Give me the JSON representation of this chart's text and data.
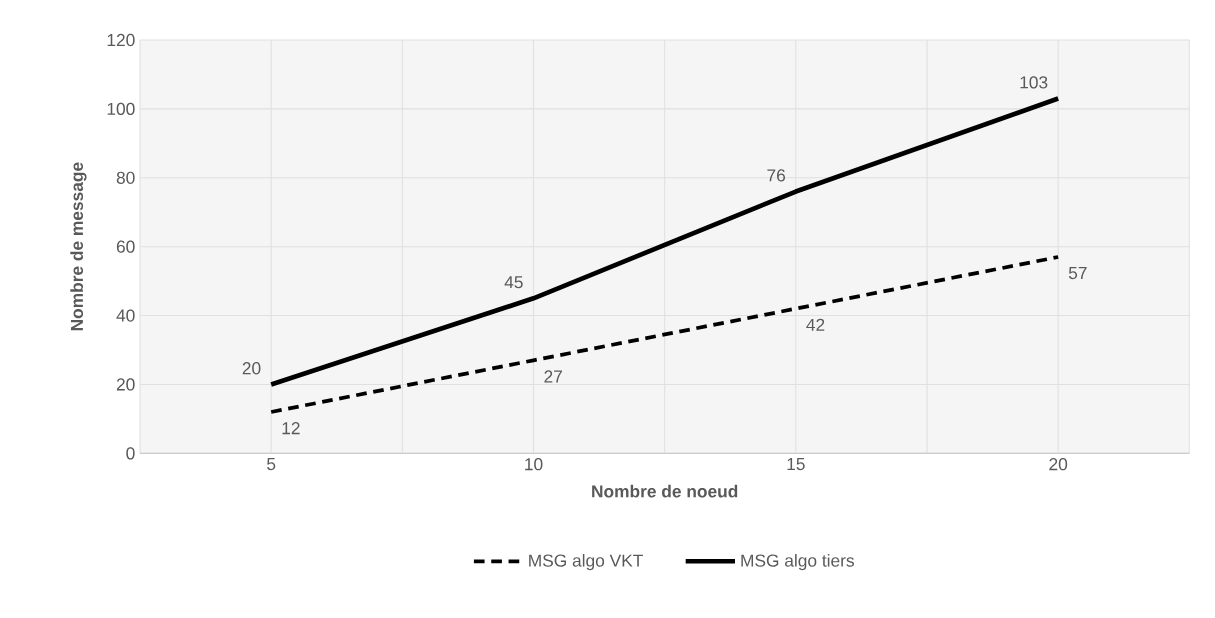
{
  "chart_data": {
    "type": "line",
    "xlabel": "Nombre de noeud",
    "ylabel": "Nombre de message",
    "categories": [
      "5",
      "10",
      "15",
      "20"
    ],
    "series": [
      {
        "name": "MSG algo VKT",
        "color": "#000000",
        "line_style": "dashed",
        "values": [
          12,
          27,
          42,
          57
        ]
      },
      {
        "name": "MSG algo tiers",
        "color": "#000000",
        "line_style": "solid",
        "values": [
          20,
          45,
          76,
          103
        ]
      }
    ],
    "ylim": [
      0,
      120
    ],
    "yticks": [
      0,
      20,
      40,
      60,
      80,
      100,
      120
    ],
    "grid": true,
    "legend": "bottom",
    "data_labels": true,
    "marker": "none"
  }
}
